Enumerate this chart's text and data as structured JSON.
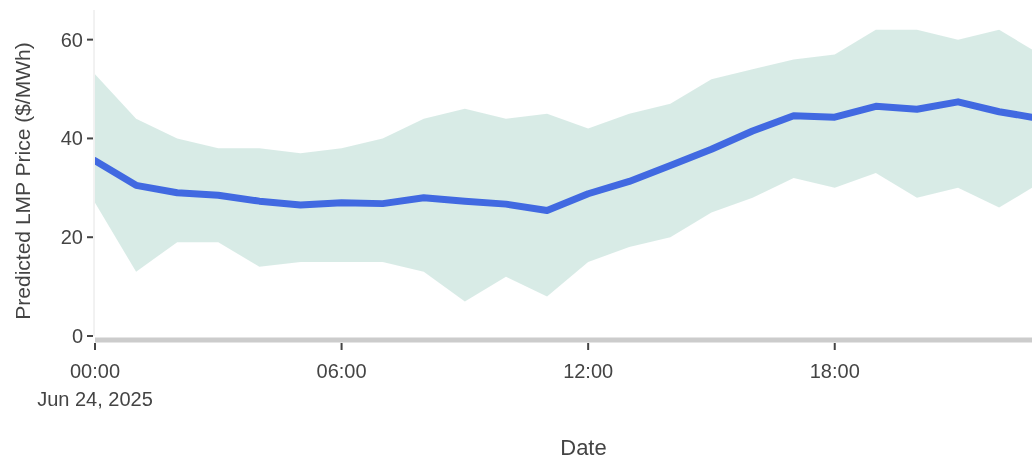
{
  "chart_data": {
    "type": "line",
    "xlabel": "Date",
    "ylabel": "Predicted LMP Price ($/MWh)",
    "x": [
      0,
      1,
      2,
      3,
      4,
      5,
      6,
      7,
      8,
      9,
      10,
      11,
      12,
      13,
      14,
      15,
      16,
      17,
      18,
      19,
      20,
      21,
      22,
      22.8
    ],
    "series": [
      {
        "color": "#4169e1",
        "values": [
          35.5,
          30.5,
          29,
          28.5,
          27.3,
          26.5,
          27,
          26.8,
          28,
          27.3,
          26.7,
          25.4,
          28.8,
          31.3,
          34.5,
          37.8,
          41.5,
          44.6,
          44.3,
          46.5,
          45.9,
          47.4,
          45.4,
          44.3
        ],
        "lower": [
          27,
          13,
          19,
          19,
          14,
          15,
          15,
          15,
          13,
          7,
          12,
          8,
          15,
          18,
          20,
          25,
          28,
          32,
          30,
          33,
          28,
          30,
          26,
          30
        ],
        "upper": [
          53,
          44,
          40,
          38,
          38,
          37,
          38,
          40,
          44,
          46,
          44,
          45,
          42,
          45,
          47,
          52,
          54,
          56,
          57,
          62,
          62,
          60,
          62,
          58
        ]
      }
    ],
    "xlim": [
      0,
      22.8
    ],
    "xticks": [
      {
        "value": 0,
        "label": "00:00"
      },
      {
        "value": 6,
        "label": "06:00"
      },
      {
        "value": 12,
        "label": "12:00"
      },
      {
        "value": 18,
        "label": "18:00"
      }
    ],
    "ylim": [
      0,
      66
    ],
    "yticks": [
      0,
      20,
      40,
      60
    ],
    "annotations": [
      "Jun 24, 2025"
    ],
    "grid": false,
    "line_style": "solid",
    "marker": "none"
  }
}
